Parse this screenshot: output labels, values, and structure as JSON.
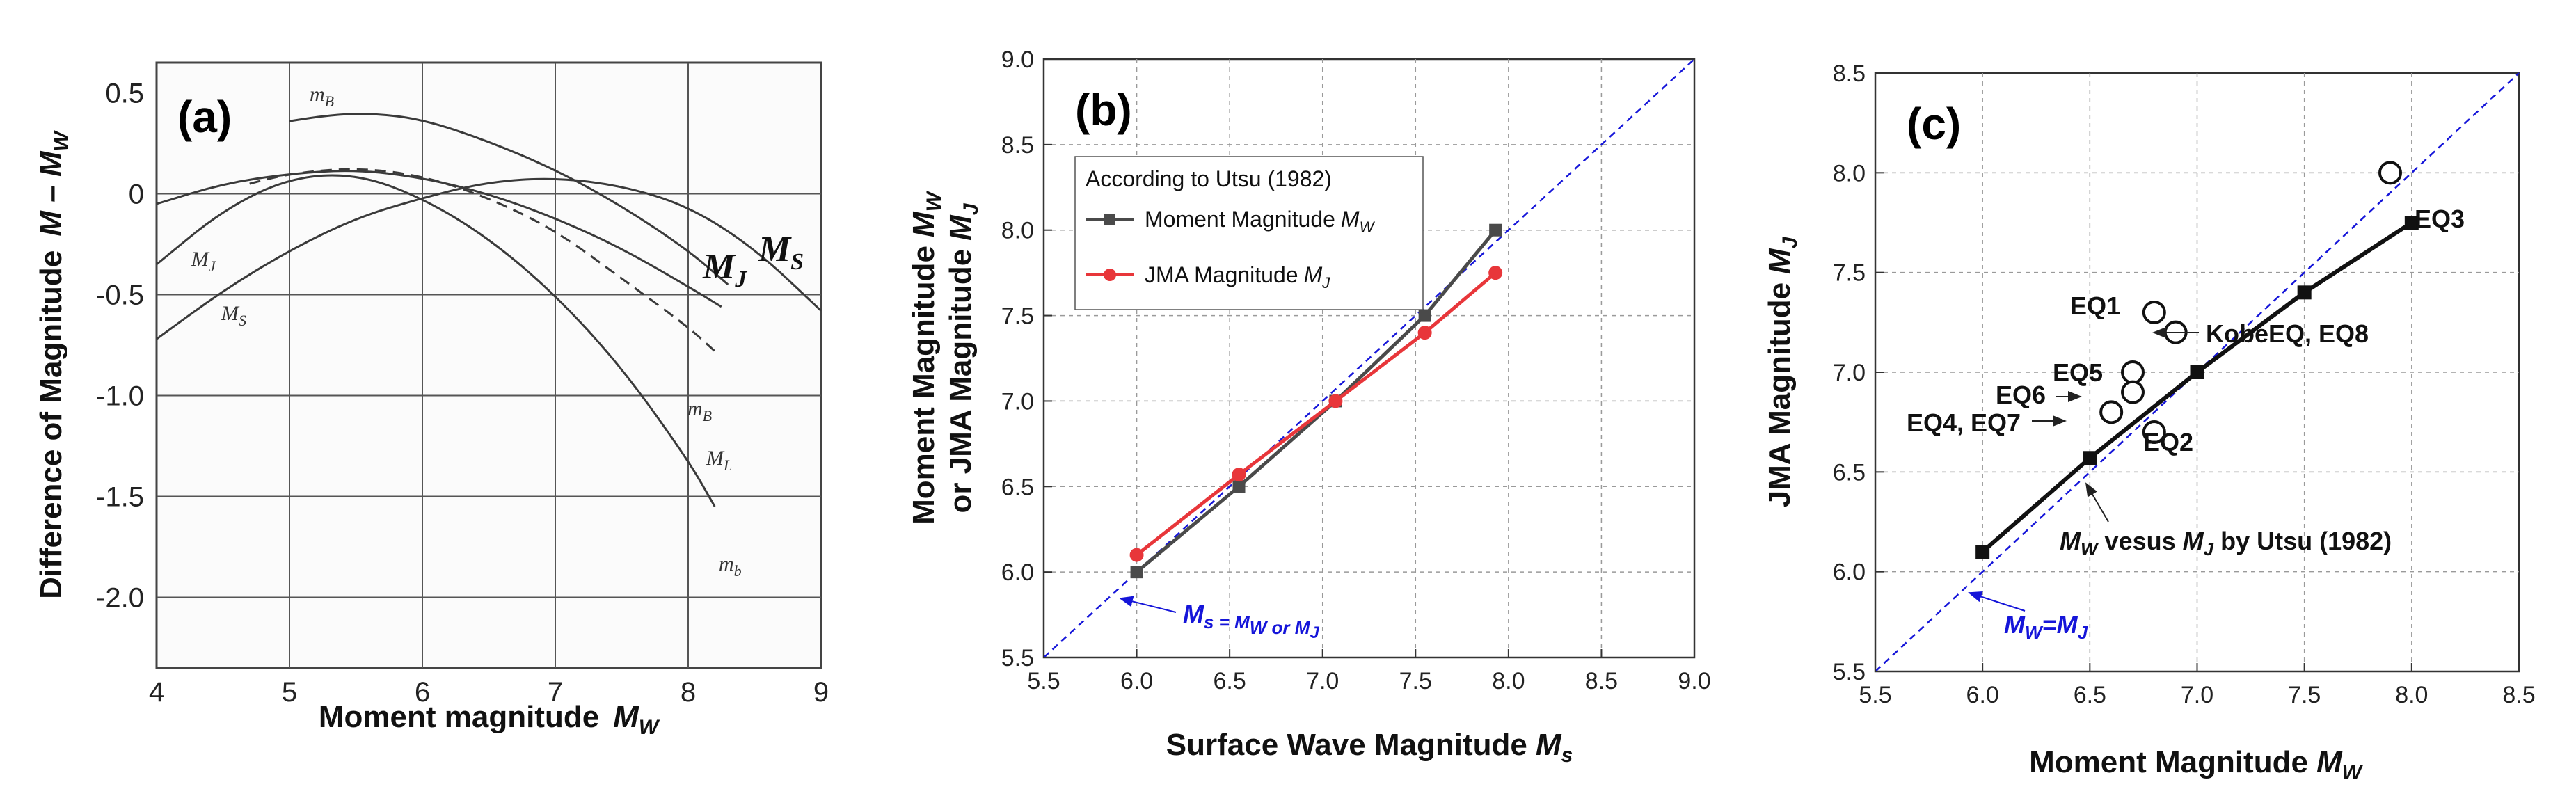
{
  "chart_data": [
    {
      "panel": "(a)",
      "type": "line",
      "xlabel": "Moment magnitude",
      "xlabel_symbol": "M",
      "xlabel_sub": "W",
      "ylabel": "Difference of Magnitude",
      "ylabel_symbol": "M – M",
      "ylabel_sub": "W",
      "xlim": [
        4,
        9
      ],
      "ylim": [
        -2.35,
        0.65
      ],
      "xticks": [
        "4",
        "5",
        "6",
        "7",
        "8",
        "9"
      ],
      "yticks": [
        "0.5",
        "0",
        "-0.5",
        "-1.0",
        "-1.5",
        "-2.0"
      ],
      "ytick_values": [
        0.5,
        0,
        -0.5,
        -1.0,
        -1.5,
        -2.0
      ],
      "series": [
        {
          "name": "mB",
          "label_main": "m",
          "label_sub": "B",
          "dashed": false,
          "x": [
            5.0,
            5.3,
            5.6,
            6.0,
            6.5,
            7.0,
            7.5,
            8.0,
            8.3
          ],
          "y": [
            0.36,
            0.39,
            0.4,
            0.37,
            0.26,
            0.12,
            -0.06,
            -0.28,
            -0.45
          ]
        },
        {
          "name": "MJ",
          "label_main": "M",
          "label_sub": "J",
          "dashed": false,
          "x": [
            4.0,
            4.5,
            5.0,
            5.5,
            6.0,
            6.5,
            7.0,
            7.5,
            8.0,
            8.25
          ],
          "y": [
            -0.05,
            0.05,
            0.1,
            0.12,
            0.08,
            0.0,
            -0.12,
            -0.27,
            -0.46,
            -0.56
          ]
        },
        {
          "name": "mb",
          "label_main": "m",
          "label_sub": "b",
          "dashed": false,
          "x": [
            4.0,
            4.5,
            5.0,
            5.5,
            6.0,
            6.5,
            7.0,
            7.5,
            8.0,
            8.2
          ],
          "y": [
            -0.35,
            -0.08,
            0.08,
            0.1,
            -0.02,
            -0.22,
            -0.5,
            -0.86,
            -1.32,
            -1.55
          ]
        },
        {
          "name": "ML",
          "label_main": "M",
          "label_sub": "L",
          "dashed": true,
          "x": [
            4.7,
            5.0,
            5.5,
            6.0,
            6.5,
            7.0,
            7.5,
            8.0,
            8.2
          ],
          "y": [
            0.05,
            0.1,
            0.13,
            0.09,
            -0.02,
            -0.18,
            -0.42,
            -0.66,
            -0.78
          ]
        },
        {
          "name": "MS",
          "label_main": "M",
          "label_sub": "S",
          "dashed": false,
          "x": [
            4.0,
            4.5,
            5.0,
            5.5,
            6.0,
            6.5,
            7.0,
            7.5,
            8.0,
            8.5,
            9.0
          ],
          "y": [
            -0.72,
            -0.48,
            -0.28,
            -0.12,
            -0.02,
            0.06,
            0.08,
            0.04,
            -0.06,
            -0.27,
            -0.58
          ]
        }
      ]
    },
    {
      "panel": "(b)",
      "type": "line",
      "xlabel": "Surface Wave Magnitude",
      "xlabel_symbol": "M",
      "xlabel_sub": "s",
      "ylabel_line1": "Moment Magnitude",
      "ylabel_line1_sub": "W",
      "ylabel_line2": "or JMA Magnitude",
      "ylabel_line2_sub": "J",
      "xlim": [
        5.5,
        9.0
      ],
      "ylim": [
        5.5,
        9.0
      ],
      "ticks": [
        "5.5",
        "6.0",
        "6.5",
        "7.0",
        "7.5",
        "8.0",
        "8.5",
        "9.0"
      ],
      "tick_values": [
        5.5,
        6.0,
        6.5,
        7.0,
        7.5,
        8.0,
        8.5,
        9.0
      ],
      "legend_title": "According to Utsu (1982)",
      "reference_line_label": "M",
      "reference_line_label_rest": "s = M",
      "reference_line_label_tail": "W or M",
      "reference_line_label_end": "J",
      "series": [
        {
          "name": "Moment Magnitude",
          "name_sub": "W",
          "color": "#4a4a4a",
          "marker": "square",
          "x": [
            6.0,
            6.55,
            7.07,
            7.55,
            7.93
          ],
          "y": [
            6.0,
            6.5,
            7.0,
            7.5,
            8.0
          ]
        },
        {
          "name": "JMA Magnitude",
          "name_sub": "J",
          "color": "#e8363a",
          "marker": "circle",
          "x": [
            6.0,
            6.55,
            7.07,
            7.55,
            7.93
          ],
          "y": [
            6.1,
            6.57,
            7.0,
            7.4,
            7.75
          ]
        }
      ]
    },
    {
      "panel": "(c)",
      "type": "scatter",
      "xlabel": "Moment Magnitude",
      "xlabel_symbol": "M",
      "xlabel_sub": "W",
      "ylabel": "JMA Magnitude",
      "ylabel_symbol": "M",
      "ylabel_sub": "J",
      "xlim": [
        5.5,
        8.5
      ],
      "ylim": [
        5.5,
        8.5
      ],
      "ticks": [
        "5.5",
        "6.0",
        "6.5",
        "7.0",
        "7.5",
        "8.0",
        "8.5"
      ],
      "tick_values": [
        5.5,
        6.0,
        6.5,
        7.0,
        7.5,
        8.0,
        8.5
      ],
      "utsu_line": {
        "x": [
          6.0,
          6.5,
          7.0,
          7.5,
          8.0
        ],
        "y": [
          6.1,
          6.57,
          7.0,
          7.4,
          7.75
        ]
      },
      "utsu_label": "vesus",
      "utsu_label_tail": "by Utsu (1982)",
      "reference_label": "=M",
      "kobe_label": "KobeEQ, EQ8",
      "events": [
        {
          "name": "EQ3",
          "x": 7.9,
          "y": 8.0
        },
        {
          "name": "EQ1",
          "x": 6.8,
          "y": 7.3
        },
        {
          "name": "KobeEQ, EQ8",
          "x": 6.9,
          "y": 7.2
        },
        {
          "name": "EQ5",
          "x": 6.7,
          "y": 7.0
        },
        {
          "name": "EQ6",
          "x": 6.7,
          "y": 6.9
        },
        {
          "name": "EQ4, EQ7",
          "x": 6.6,
          "y": 6.8
        },
        {
          "name": "EQ2",
          "x": 6.8,
          "y": 6.7
        }
      ]
    }
  ]
}
